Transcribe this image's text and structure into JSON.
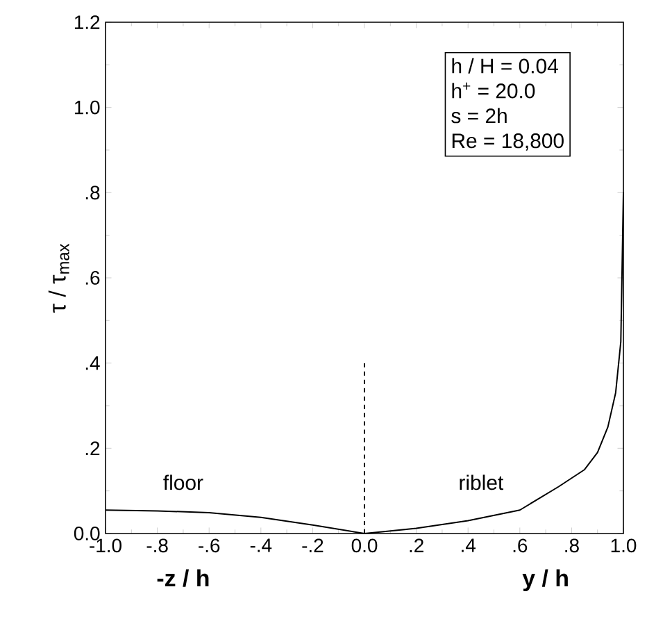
{
  "chart_data": {
    "type": "line",
    "xlabel": "-z / h",
    "ylabel": "τ  / τ$_{max}$",
    "series": [
      {
        "color": "#000000",
        "line_style": "solid",
        "x": [
          -1.0,
          -0.8,
          -0.6,
          -0.4,
          -0.2,
          0.0,
          0.2,
          0.4,
          0.6,
          0.75,
          0.85,
          0.9,
          0.94,
          0.97,
          0.99,
          1.0
        ],
        "values": [
          0.055,
          0.053,
          0.049,
          0.038,
          0.02,
          0.0,
          0.012,
          0.03,
          0.055,
          0.11,
          0.15,
          0.19,
          0.25,
          0.33,
          0.45,
          0.8
        ]
      },
      {
        "color": "#000000",
        "line_style": "dashed",
        "x": [
          0.0,
          0.0
        ],
        "values": [
          0.0,
          0.4
        ]
      }
    ],
    "xlim": [
      -1.0,
      1.0
    ],
    "ylim": [
      0.0,
      1.2
    ],
    "xticks": [
      {
        "value": -1.0,
        "label": "-1.0"
      },
      {
        "value": -0.8,
        "label": "-.8"
      },
      {
        "value": -0.6,
        "label": "-.6"
      },
      {
        "value": -0.4,
        "label": "-.4"
      },
      {
        "value": -0.2,
        "label": "-.2"
      },
      {
        "value": 0.0,
        "label": "0.0"
      },
      {
        "value": 0.2,
        "label": ".2"
      },
      {
        "value": 0.4,
        "label": ".4"
      },
      {
        "value": 0.6,
        "label": ".6"
      },
      {
        "value": 0.8,
        "label": ".8"
      },
      {
        "value": 1.0,
        "label": "1.0"
      }
    ],
    "yticks": [
      {
        "value": 0.0,
        "label": "0.0"
      },
      {
        "value": 0.2,
        "label": ".2"
      },
      {
        "value": 0.4,
        "label": ".4"
      },
      {
        "value": 0.6,
        "label": ".6"
      },
      {
        "value": 0.8,
        "label": ".8"
      },
      {
        "value": 1.0,
        "label": "1.0"
      },
      {
        "value": 1.2,
        "label": "1.2"
      }
    ],
    "annotations": [
      "floor",
      "riblet",
      "y / h",
      "h / H = 0.04",
      "h$^{+}$ = 20.0",
      "s = 2h",
      "Re = 18,800"
    ],
    "grid": false
  }
}
